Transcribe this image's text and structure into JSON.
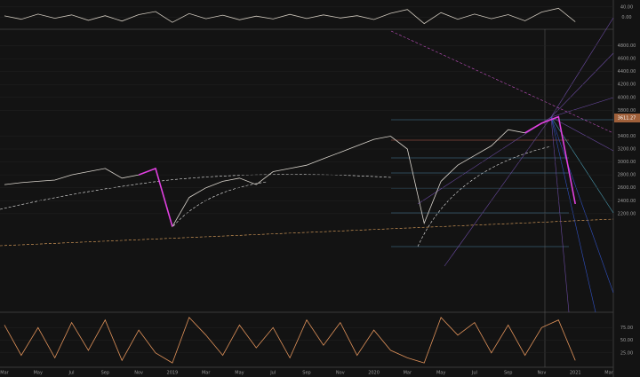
{
  "chart_data": [
    {
      "type": "line",
      "ylim": [
        -40,
        60
      ],
      "yticks": [
        {
          "value": 40,
          "label": "40.00"
        },
        {
          "value": 0,
          "label": "0.00"
        }
      ],
      "series": [
        {
          "color": "#cfc8bd",
          "values": [
            5,
            -8,
            12,
            -4,
            9,
            -12,
            6,
            -15,
            10,
            22,
            -20,
            14,
            -6,
            8,
            -10,
            4,
            -7,
            11,
            -5,
            9,
            -3,
            6,
            -9,
            15,
            30,
            -25,
            18,
            -8,
            12,
            -6,
            10,
            -14,
            20,
            35,
            -18,
            null,
            null
          ]
        }
      ]
    },
    {
      "type": "line",
      "ylim": [
        700,
        5000
      ],
      "price_tag": "3611.27",
      "yticks": [
        {
          "value": 2200,
          "label": "2200.00"
        },
        {
          "value": 2400,
          "label": "2400.00"
        },
        {
          "value": 2600,
          "label": "2600.00"
        },
        {
          "value": 2800,
          "label": "2800.00"
        },
        {
          "value": 3000,
          "label": "3000.00"
        },
        {
          "value": 3200,
          "label": "3200.00"
        },
        {
          "value": 3400,
          "label": "3400.00"
        },
        {
          "value": 3800,
          "label": "3800.00"
        },
        {
          "value": 4000,
          "label": "4000.00"
        },
        {
          "value": 4200,
          "label": "4200.00"
        },
        {
          "value": 4400,
          "label": "4400.00"
        },
        {
          "value": 4600,
          "label": "4600.00"
        },
        {
          "value": 4800,
          "label": "4800.00"
        }
      ],
      "categories": [
        "Mar",
        null,
        "May",
        null,
        "Jul",
        null,
        "Sep",
        null,
        "Nov",
        null,
        "2019",
        null,
        "Mar",
        null,
        "May",
        null,
        "Jul",
        null,
        "Sep",
        null,
        "Nov",
        null,
        "2020",
        null,
        "Mar",
        null,
        "May",
        null,
        "Jul",
        null,
        "Sep",
        null,
        "Nov",
        null,
        "2021",
        null,
        "Mar"
      ],
      "series": [
        {
          "color": "#d9d4cc",
          "values": [
            2650,
            2680,
            2700,
            2720,
            2800,
            2850,
            2900,
            2750,
            2800,
            2900,
            2000,
            2450,
            2600,
            2700,
            2750,
            2650,
            2850,
            2900,
            2950,
            3050,
            3150,
            3250,
            3350,
            3400,
            3200,
            2050,
            2700,
            2950,
            3100,
            3250,
            3500,
            3450,
            3600,
            3700,
            2350,
            null,
            null
          ]
        },
        {
          "color": "#e040e0",
          "values": [
            null,
            null,
            null,
            null,
            null,
            null,
            null,
            null,
            2800,
            2900,
            2000,
            null,
            null,
            null,
            null,
            null,
            null,
            null,
            null,
            null,
            null,
            null,
            null,
            null,
            null,
            null,
            null,
            null,
            null,
            null,
            null,
            3450,
            3600,
            3700,
            2350,
            null,
            null
          ]
        }
      ]
    },
    {
      "type": "line",
      "ylim": [
        0,
        100
      ],
      "yticks": [
        {
          "value": 75,
          "label": "75.00"
        },
        {
          "value": 50,
          "label": "50.00"
        },
        {
          "value": 25,
          "label": "25.00"
        }
      ],
      "series": [
        {
          "color": "#e0925a",
          "values": [
            80,
            20,
            75,
            15,
            85,
            30,
            90,
            10,
            70,
            25,
            5,
            95,
            60,
            20,
            80,
            35,
            75,
            15,
            90,
            40,
            85,
            20,
            70,
            30,
            15,
            5,
            95,
            60,
            85,
            25,
            80,
            20,
            75,
            90,
            10,
            null,
            null
          ]
        }
      ]
    }
  ]
}
